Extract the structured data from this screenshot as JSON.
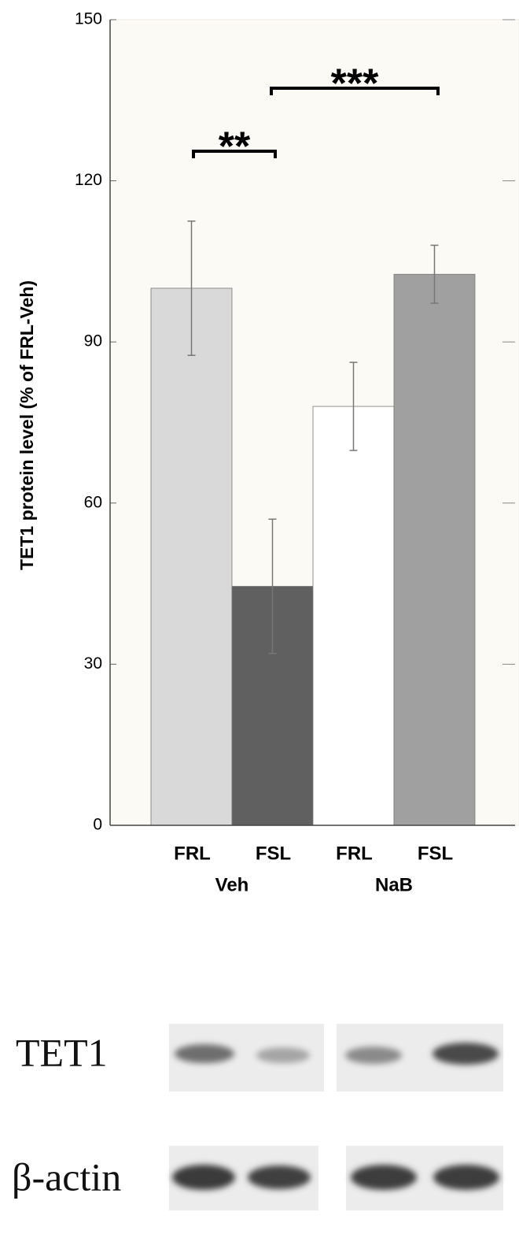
{
  "chart_data": {
    "type": "bar",
    "ylabel": "TET1 protein level (% of FRL-Veh)",
    "categories": [
      "FRL",
      "FSL",
      "FRL",
      "FSL"
    ],
    "groups": [
      "Veh",
      "NaB"
    ],
    "values": [
      100,
      44.5,
      78,
      102.6
    ],
    "errors": [
      12.5,
      12.5,
      8.2,
      5.4
    ],
    "colors": [
      "#d9d9d9",
      "#606060",
      "#ffffff",
      "#a0a0a0"
    ],
    "ylim": [
      0,
      150
    ],
    "yticks": [
      0,
      30,
      60,
      90,
      120,
      150
    ],
    "annotations": [
      "**",
      "***"
    ]
  },
  "blot": {
    "rows": [
      "TET1",
      "β-actin"
    ]
  }
}
